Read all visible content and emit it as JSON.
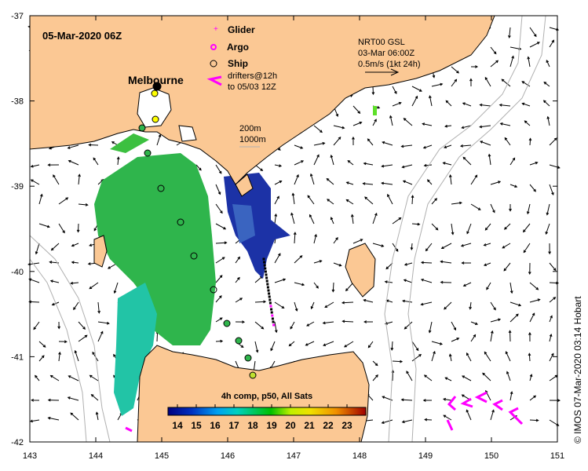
{
  "map": {
    "title": "05-Mar-2020 06Z",
    "city": "Melbourne",
    "credit": "© IMOS 07-Mar-2020 03:14 Hobart",
    "legend": {
      "glider": "Glider",
      "argo": "Argo",
      "ship": "Ship",
      "drifters_line1": "drifters@12h",
      "drifters_line2": "to 05/03 12Z"
    },
    "current_ref": {
      "line1": "NRT00 GSL",
      "line2": "03-Mar 06:00Z",
      "line3": "0.5m/s (1kt 24h)"
    },
    "isobaths": {
      "a": "200m",
      "b": "1000m"
    },
    "colorbar": {
      "title": "4h comp, p50, All Sats",
      "ticks": [
        "14",
        "15",
        "16",
        "17",
        "18",
        "19",
        "20",
        "21",
        "22",
        "23"
      ],
      "range": [
        13.5,
        24
      ]
    },
    "x_ticks": [
      "143",
      "144",
      "145",
      "146",
      "147",
      "148",
      "149",
      "150",
      "151"
    ],
    "y_ticks": [
      "-37",
      "-38",
      "-39",
      "-40",
      "-41",
      "-42"
    ],
    "colors": {
      "land": "#fbc894",
      "ocean": "#ffffff",
      "glider": "#ff00ff",
      "isobath": "#b0b0b0"
    }
  }
}
